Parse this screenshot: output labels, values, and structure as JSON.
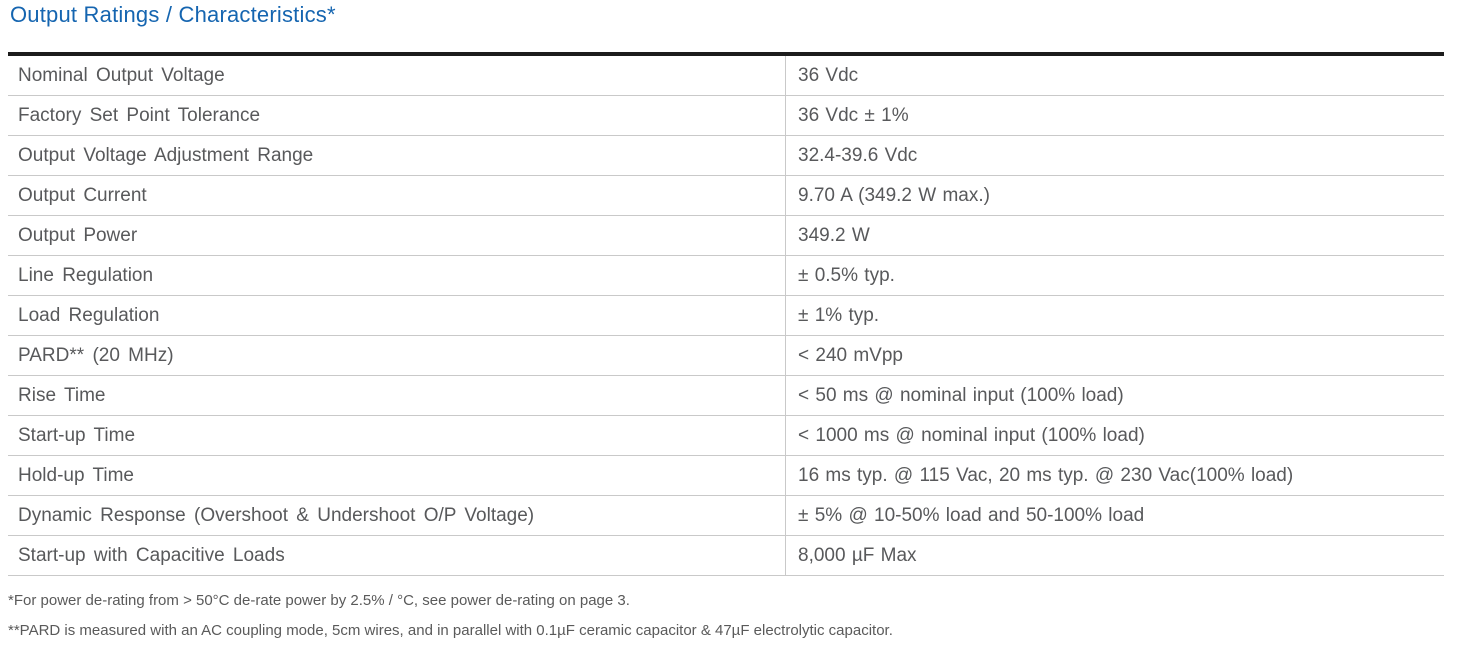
{
  "section": {
    "title": "Output Ratings / Characteristics*"
  },
  "table": {
    "rows": [
      {
        "label": "Nominal Output Voltage",
        "value": "36 Vdc"
      },
      {
        "label": "Factory Set Point Tolerance",
        "value": "36 Vdc ± 1%"
      },
      {
        "label": "Output Voltage Adjustment Range",
        "value": "32.4-39.6 Vdc"
      },
      {
        "label": "Output Current",
        "value": "9.70 A (349.2 W max.)"
      },
      {
        "label": "Output Power",
        "value": "349.2 W"
      },
      {
        "label": "Line Regulation",
        "value": "± 0.5% typ."
      },
      {
        "label": "Load Regulation",
        "value": "± 1% typ."
      },
      {
        "label": "PARD** (20 MHz)",
        "value": "< 240 mVpp"
      },
      {
        "label": "Rise Time",
        "value": "< 50 ms @ nominal input (100% load)"
      },
      {
        "label": "Start-up Time",
        "value": "< 1000 ms @ nominal input (100% load)"
      },
      {
        "label": "Hold-up Time",
        "value": "16 ms typ. @ 115 Vac, 20 ms typ. @ 230 Vac(100% load)"
      },
      {
        "label": "Dynamic Response (Overshoot & Undershoot O/P Voltage)",
        "value": "± 5% @ 10-50% load and 50-100% load"
      },
      {
        "label": "Start-up with Capacitive Loads",
        "value": "8,000 µF Max"
      }
    ]
  },
  "footnotes": [
    "*For power de-rating from > 50°C de-rate power by 2.5% / °C, see power de-rating on page 3.",
    "**PARD is measured with an AC coupling mode, 5cm wires, and in parallel with 0.1µF ceramic capacitor & 47µF electrolytic capacitor."
  ],
  "colors": {
    "title_blue": "#1565b0",
    "body_text": "#58595b",
    "divider": "#c9c9c9",
    "top_border": "#1c1c1c"
  }
}
